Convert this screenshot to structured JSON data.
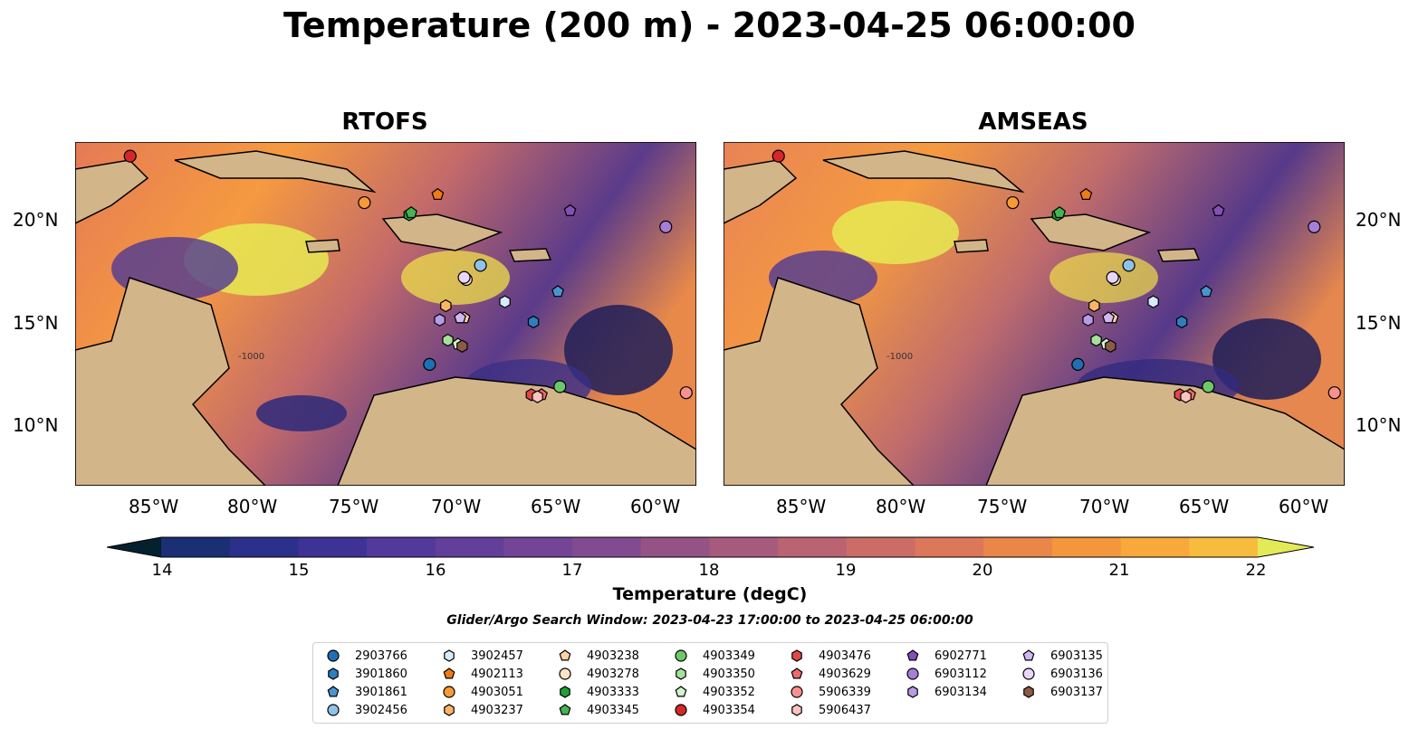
{
  "title": "Temperature (200 m) - 2023-04-25 06:00:00",
  "panels": [
    {
      "title": "RTOFS"
    },
    {
      "title": "AMSEAS"
    }
  ],
  "lat_labels": [
    "20°N",
    "15°N",
    "10°N"
  ],
  "lon_labels": [
    "85°W",
    "80°W",
    "75°W",
    "70°W",
    "65°W",
    "60°W"
  ],
  "contour_label": "-1000",
  "colorbar": {
    "label": "Temperature (degC)",
    "ticks": [
      "14",
      "15",
      "16",
      "17",
      "18",
      "19",
      "20",
      "21",
      "22"
    ],
    "min": 14,
    "max": 22,
    "step": 0.5,
    "extend": "both"
  },
  "search_window": "Glider/Argo Search Window: 2023-04-23 17:00:00 to 2023-04-25 06:00:00",
  "chart_data": {
    "type": "heatmap",
    "variable": "Temperature",
    "depth": "200 m",
    "time": "2023-04-25 06:00:00",
    "xlim": [
      -89,
      -58.5
    ],
    "ylim": [
      7,
      24
    ],
    "colormap_range": [
      14,
      22
    ],
    "panels": [
      "RTOFS",
      "AMSEAS"
    ],
    "floats": [
      {
        "id": "2903766",
        "marker": "circle",
        "color": "#1f6fb4",
        "lon": -71.6,
        "lat": 13.0
      },
      {
        "id": "3901860",
        "marker": "hexagon",
        "color": "#2e7ebf",
        "lon": -66.5,
        "lat": 15.1
      },
      {
        "id": "3901861",
        "marker": "pentagon",
        "color": "#4a94cf",
        "lon": -65.3,
        "lat": 16.6
      },
      {
        "id": "3902456",
        "marker": "circle",
        "color": "#8fc1ea",
        "lon": -69.1,
        "lat": 17.9
      },
      {
        "id": "3902457",
        "marker": "hexagon",
        "color": "#d6ebfb",
        "lon": -67.9,
        "lat": 16.1
      },
      {
        "id": "4902113",
        "marker": "pentagon",
        "color": "#f07a14",
        "lon": -71.2,
        "lat": 21.4
      },
      {
        "id": "4903051",
        "marker": "circle",
        "color": "#f79a36",
        "lon": -74.8,
        "lat": 21.0
      },
      {
        "id": "4903237",
        "marker": "hexagon",
        "color": "#fbb566",
        "lon": -70.8,
        "lat": 15.9
      },
      {
        "id": "4903238",
        "marker": "pentagon",
        "color": "#fdd3a6",
        "lon": -69.9,
        "lat": 15.3
      },
      {
        "id": "4903278",
        "marker": "circle",
        "color": "#fde3c8",
        "lon": -69.8,
        "lat": 17.2
      },
      {
        "id": "4903333",
        "marker": "hexagon",
        "color": "#1f9e3a",
        "lon": -72.6,
        "lat": 20.4
      },
      {
        "id": "4903345",
        "marker": "pentagon",
        "color": "#43b552",
        "lon": -72.5,
        "lat": 20.5
      },
      {
        "id": "4903349",
        "marker": "circle",
        "color": "#6cc86a",
        "lon": -65.2,
        "lat": 11.9
      },
      {
        "id": "4903350",
        "marker": "hexagon",
        "color": "#a6e09c",
        "lon": -70.7,
        "lat": 14.2
      },
      {
        "id": "4903352",
        "marker": "pentagon",
        "color": "#d2f3cb",
        "lon": -70.2,
        "lat": 14.0
      },
      {
        "id": "4903354",
        "marker": "circle",
        "color": "#d62728",
        "lon": -86.3,
        "lat": 23.3
      },
      {
        "id": "4903476",
        "marker": "hexagon",
        "color": "#e04848",
        "lon": -66.6,
        "lat": 11.5
      },
      {
        "id": "4903629",
        "marker": "pentagon",
        "color": "#ef6a6a",
        "lon": -66.1,
        "lat": 11.5
      },
      {
        "id": "5906339",
        "marker": "circle",
        "color": "#f7918f",
        "lon": -59.0,
        "lat": 11.6
      },
      {
        "id": "5906437",
        "marker": "hexagon",
        "color": "#fcc3c0",
        "lon": -66.3,
        "lat": 11.4
      },
      {
        "id": "6902771",
        "marker": "pentagon",
        "color": "#8350b8",
        "lon": -64.7,
        "lat": 20.6
      },
      {
        "id": "6903112",
        "marker": "circle",
        "color": "#a57fd6",
        "lon": -60.0,
        "lat": 19.8
      },
      {
        "id": "6903134",
        "marker": "hexagon",
        "color": "#b79be6",
        "lon": -71.1,
        "lat": 15.2
      },
      {
        "id": "6903135",
        "marker": "pentagon",
        "color": "#d0b8f2",
        "lon": -70.1,
        "lat": 15.3
      },
      {
        "id": "6903136",
        "marker": "circle",
        "color": "#ead5fb",
        "lon": -69.9,
        "lat": 17.3
      },
      {
        "id": "6903137",
        "marker": "hexagon",
        "color": "#8c5a46",
        "lon": -70.0,
        "lat": 13.9
      }
    ]
  }
}
